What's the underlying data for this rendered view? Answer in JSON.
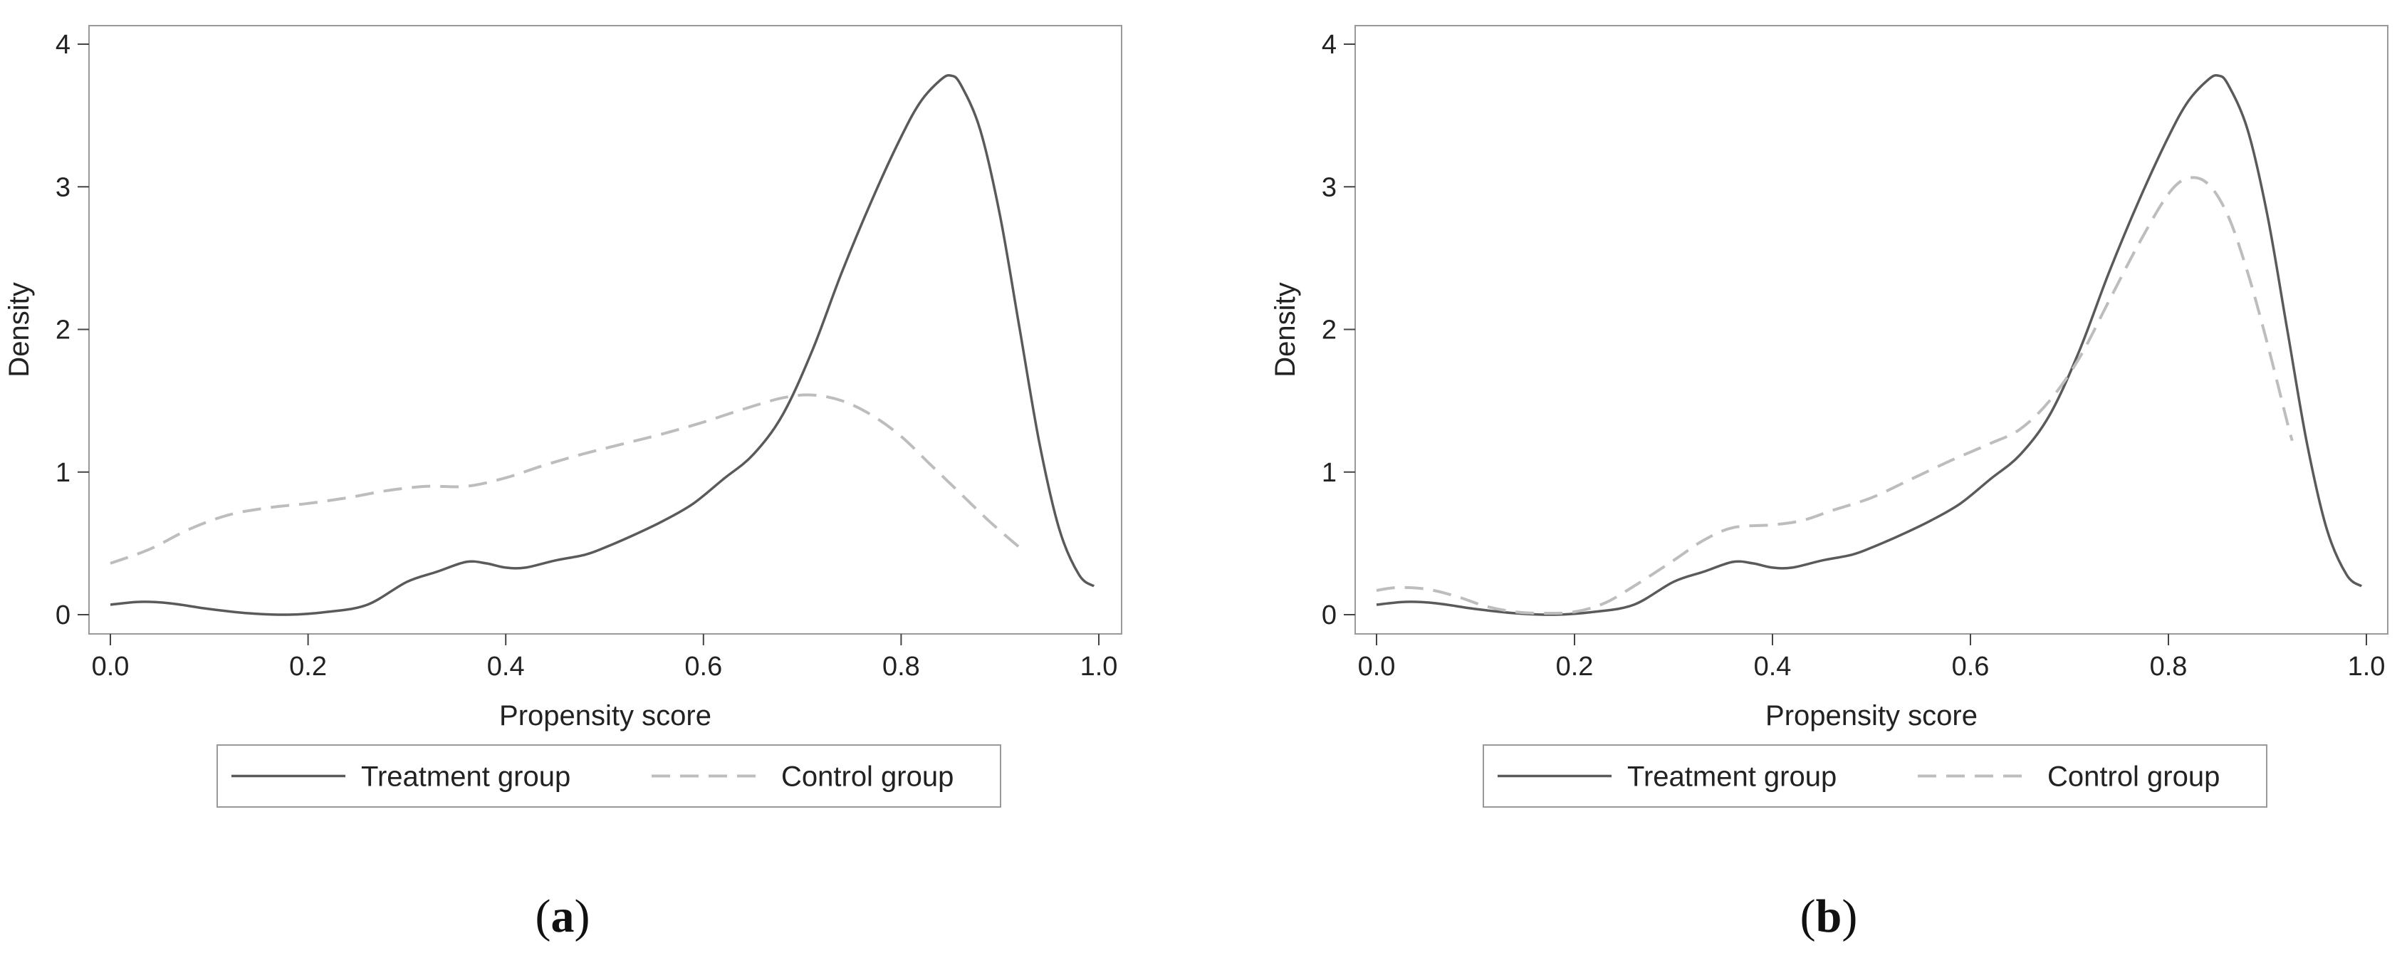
{
  "colors": {
    "treatment": "#5a5a5a",
    "control": "#bdbdbd",
    "axis": "#444444",
    "frame": "#999999"
  },
  "chart_data": [
    {
      "panel": "a",
      "type": "line",
      "title": "",
      "xlabel": "Propensity score",
      "ylabel": "Density",
      "xlim": [
        0.0,
        1.0
      ],
      "ylim": [
        0,
        4
      ],
      "xticks": [
        "0.0",
        "0.2",
        "0.4",
        "0.6",
        "0.8",
        "1.0"
      ],
      "yticks": [
        "0",
        "1",
        "2",
        "3",
        "4"
      ],
      "grid": false,
      "legend": "bottom",
      "series": [
        {
          "name": "Treatment group",
          "style": "solid",
          "x": [
            0.0,
            0.03,
            0.06,
            0.1,
            0.14,
            0.18,
            0.22,
            0.26,
            0.3,
            0.33,
            0.36,
            0.38,
            0.4,
            0.42,
            0.45,
            0.48,
            0.5,
            0.53,
            0.56,
            0.59,
            0.62,
            0.65,
            0.68,
            0.71,
            0.74,
            0.77,
            0.8,
            0.82,
            0.84,
            0.85,
            0.86,
            0.88,
            0.9,
            0.92,
            0.94,
            0.96,
            0.98,
            0.995
          ],
          "y": [
            0.07,
            0.09,
            0.08,
            0.04,
            0.01,
            0.0,
            0.02,
            0.07,
            0.23,
            0.3,
            0.37,
            0.36,
            0.33,
            0.33,
            0.38,
            0.42,
            0.47,
            0.56,
            0.66,
            0.78,
            0.95,
            1.12,
            1.4,
            1.85,
            2.4,
            2.9,
            3.35,
            3.6,
            3.75,
            3.78,
            3.72,
            3.4,
            2.8,
            2.0,
            1.2,
            0.6,
            0.28,
            0.2
          ]
        },
        {
          "name": "Control group",
          "style": "dashed",
          "x": [
            0.0,
            0.04,
            0.08,
            0.12,
            0.16,
            0.2,
            0.24,
            0.28,
            0.32,
            0.36,
            0.4,
            0.44,
            0.48,
            0.52,
            0.56,
            0.6,
            0.64,
            0.68,
            0.71,
            0.74,
            0.77,
            0.8,
            0.83,
            0.86,
            0.89,
            0.92
          ],
          "y": [
            0.36,
            0.46,
            0.6,
            0.7,
            0.75,
            0.78,
            0.82,
            0.87,
            0.9,
            0.9,
            0.96,
            1.05,
            1.13,
            1.2,
            1.27,
            1.35,
            1.44,
            1.52,
            1.54,
            1.5,
            1.4,
            1.25,
            1.05,
            0.85,
            0.65,
            0.47
          ]
        }
      ],
      "panel_label": {
        "open": "(",
        "letter": "a",
        "close": ")"
      }
    },
    {
      "panel": "b",
      "type": "line",
      "title": "",
      "xlabel": "Propensity score",
      "ylabel": "Density",
      "xlim": [
        0.0,
        1.0
      ],
      "ylim": [
        0,
        4
      ],
      "xticks": [
        "0.0",
        "0.2",
        "0.4",
        "0.6",
        "0.8",
        "1.0"
      ],
      "yticks": [
        "0",
        "1",
        "2",
        "3",
        "4"
      ],
      "grid": false,
      "legend": "bottom",
      "series": [
        {
          "name": "Treatment group",
          "style": "solid",
          "x": [
            0.0,
            0.03,
            0.06,
            0.1,
            0.14,
            0.18,
            0.22,
            0.26,
            0.3,
            0.33,
            0.36,
            0.38,
            0.4,
            0.42,
            0.45,
            0.48,
            0.5,
            0.53,
            0.56,
            0.59,
            0.62,
            0.65,
            0.68,
            0.71,
            0.74,
            0.77,
            0.8,
            0.82,
            0.84,
            0.85,
            0.86,
            0.88,
            0.9,
            0.92,
            0.94,
            0.96,
            0.98,
            0.995
          ],
          "y": [
            0.07,
            0.09,
            0.08,
            0.04,
            0.01,
            0.0,
            0.02,
            0.07,
            0.23,
            0.3,
            0.37,
            0.36,
            0.33,
            0.33,
            0.38,
            0.42,
            0.47,
            0.56,
            0.66,
            0.78,
            0.95,
            1.12,
            1.4,
            1.85,
            2.4,
            2.9,
            3.35,
            3.6,
            3.75,
            3.78,
            3.72,
            3.4,
            2.8,
            2.0,
            1.2,
            0.6,
            0.28,
            0.2
          ]
        },
        {
          "name": "Control group",
          "style": "dashed",
          "x": [
            0.0,
            0.02,
            0.05,
            0.08,
            0.11,
            0.14,
            0.17,
            0.2,
            0.23,
            0.26,
            0.3,
            0.33,
            0.36,
            0.4,
            0.43,
            0.46,
            0.5,
            0.54,
            0.58,
            0.62,
            0.65,
            0.68,
            0.71,
            0.74,
            0.77,
            0.8,
            0.82,
            0.84,
            0.86,
            0.88,
            0.9,
            0.92,
            0.925
          ],
          "y": [
            0.17,
            0.19,
            0.18,
            0.13,
            0.06,
            0.02,
            0.01,
            0.02,
            0.08,
            0.2,
            0.38,
            0.52,
            0.61,
            0.63,
            0.66,
            0.73,
            0.82,
            0.95,
            1.08,
            1.2,
            1.3,
            1.5,
            1.8,
            2.2,
            2.6,
            2.95,
            3.06,
            3.02,
            2.8,
            2.4,
            1.9,
            1.35,
            1.22
          ]
        }
      ],
      "panel_label": {
        "open": "(",
        "letter": "b",
        "close": ")"
      }
    }
  ]
}
